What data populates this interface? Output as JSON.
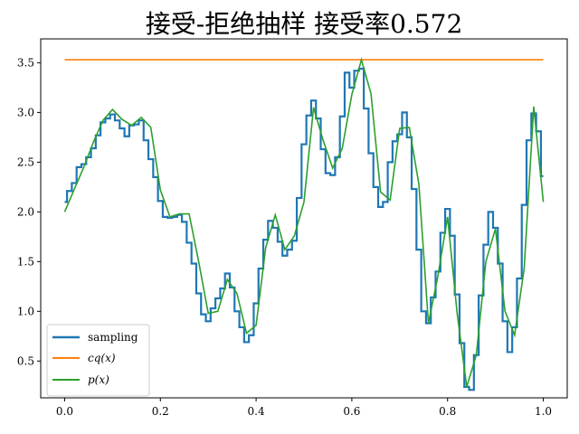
{
  "chart_data": {
    "type": "line",
    "title": "接受-拒绝抽样 接受率0.572",
    "xlabel": "",
    "ylabel": "",
    "xlim": [
      -0.05,
      1.05
    ],
    "ylim": [
      0.13,
      3.74
    ],
    "xticks": [
      0.0,
      0.2,
      0.4,
      0.6,
      0.8,
      1.0
    ],
    "xtick_labels": [
      "0.0",
      "0.2",
      "0.4",
      "0.6",
      "0.8",
      "1.0"
    ],
    "yticks": [
      0.5,
      1.0,
      1.5,
      2.0,
      2.5,
      3.0,
      3.5
    ],
    "ytick_labels": [
      "0.5",
      "1.0",
      "1.5",
      "2.0",
      "2.5",
      "3.0",
      "3.5"
    ],
    "grid": false,
    "legend_position": "lower-left",
    "series": [
      {
        "name": "sampling",
        "style": "step",
        "color": "#1f77b4",
        "x": [
          0.0,
          0.01,
          0.02,
          0.03,
          0.04,
          0.05,
          0.06,
          0.07,
          0.08,
          0.09,
          0.1,
          0.11,
          0.12,
          0.13,
          0.14,
          0.15,
          0.16,
          0.17,
          0.18,
          0.19,
          0.2,
          0.21,
          0.22,
          0.23,
          0.24,
          0.25,
          0.26,
          0.27,
          0.28,
          0.29,
          0.3,
          0.31,
          0.32,
          0.33,
          0.34,
          0.35,
          0.36,
          0.37,
          0.38,
          0.39,
          0.4,
          0.41,
          0.42,
          0.43,
          0.44,
          0.45,
          0.46,
          0.47,
          0.48,
          0.49,
          0.5,
          0.51,
          0.52,
          0.53,
          0.54,
          0.55,
          0.56,
          0.57,
          0.58,
          0.59,
          0.6,
          0.61,
          0.62,
          0.63,
          0.64,
          0.65,
          0.66,
          0.67,
          0.68,
          0.69,
          0.7,
          0.71,
          0.72,
          0.73,
          0.74,
          0.75,
          0.76,
          0.77,
          0.78,
          0.79,
          0.8,
          0.81,
          0.82,
          0.83,
          0.84,
          0.85,
          0.86,
          0.87,
          0.88,
          0.89,
          0.9,
          0.91,
          0.92,
          0.93,
          0.94,
          0.95,
          0.96,
          0.97,
          0.98,
          0.99,
          1.0
        ],
        "values": [
          2.1,
          2.21,
          2.29,
          2.45,
          2.48,
          2.55,
          2.64,
          2.77,
          2.9,
          2.94,
          2.98,
          2.92,
          2.84,
          2.76,
          2.87,
          2.88,
          2.92,
          2.72,
          2.53,
          2.35,
          2.11,
          1.95,
          1.94,
          1.95,
          1.97,
          1.9,
          1.69,
          1.48,
          1.18,
          0.97,
          0.9,
          1.03,
          1.13,
          1.23,
          1.38,
          1.24,
          1.0,
          0.84,
          0.69,
          0.76,
          1.08,
          1.43,
          1.72,
          1.91,
          1.84,
          1.7,
          1.56,
          1.62,
          1.71,
          2.14,
          2.68,
          2.97,
          3.12,
          2.94,
          2.63,
          2.39,
          2.37,
          2.55,
          2.96,
          3.4,
          3.25,
          3.42,
          3.44,
          3.04,
          2.59,
          2.25,
          2.05,
          2.1,
          2.5,
          2.71,
          2.78,
          3.0,
          2.75,
          2.23,
          1.62,
          1.0,
          0.88,
          1.14,
          1.4,
          1.79,
          2.03,
          1.76,
          1.17,
          0.68,
          0.24,
          0.21,
          0.56,
          1.16,
          1.67,
          2.0,
          1.84,
          1.48,
          0.9,
          0.59,
          0.84,
          1.33,
          2.07,
          2.72,
          2.99,
          2.81,
          2.36
        ]
      },
      {
        "name": "cq(x)",
        "style": "line",
        "color": "#ff7f0e",
        "x": [
          0.0,
          1.0
        ],
        "values": [
          3.53,
          3.53
        ]
      },
      {
        "name": "p(x)",
        "style": "line",
        "color": "#2ca02c",
        "x": [
          0.0,
          0.04,
          0.06,
          0.08,
          0.1,
          0.12,
          0.14,
          0.16,
          0.18,
          0.2,
          0.22,
          0.24,
          0.26,
          0.28,
          0.3,
          0.32,
          0.34,
          0.36,
          0.38,
          0.4,
          0.42,
          0.44,
          0.46,
          0.48,
          0.5,
          0.52,
          0.54,
          0.56,
          0.58,
          0.6,
          0.62,
          0.64,
          0.66,
          0.68,
          0.7,
          0.72,
          0.74,
          0.76,
          0.78,
          0.8,
          0.82,
          0.84,
          0.86,
          0.88,
          0.9,
          0.92,
          0.94,
          0.96,
          0.98,
          1.0
        ],
        "values": [
          2.0,
          2.45,
          2.7,
          2.92,
          3.03,
          2.93,
          2.87,
          2.95,
          2.85,
          2.22,
          1.95,
          1.98,
          1.98,
          1.5,
          0.98,
          1.0,
          1.32,
          1.18,
          0.78,
          0.86,
          1.64,
          1.97,
          1.62,
          1.76,
          2.1,
          3.05,
          2.72,
          2.44,
          2.64,
          3.18,
          3.53,
          3.19,
          2.2,
          2.12,
          2.84,
          2.85,
          2.28,
          0.88,
          1.36,
          1.95,
          0.98,
          0.24,
          0.56,
          1.5,
          1.83,
          1.0,
          0.76,
          1.43,
          3.06,
          2.1
        ]
      }
    ]
  }
}
